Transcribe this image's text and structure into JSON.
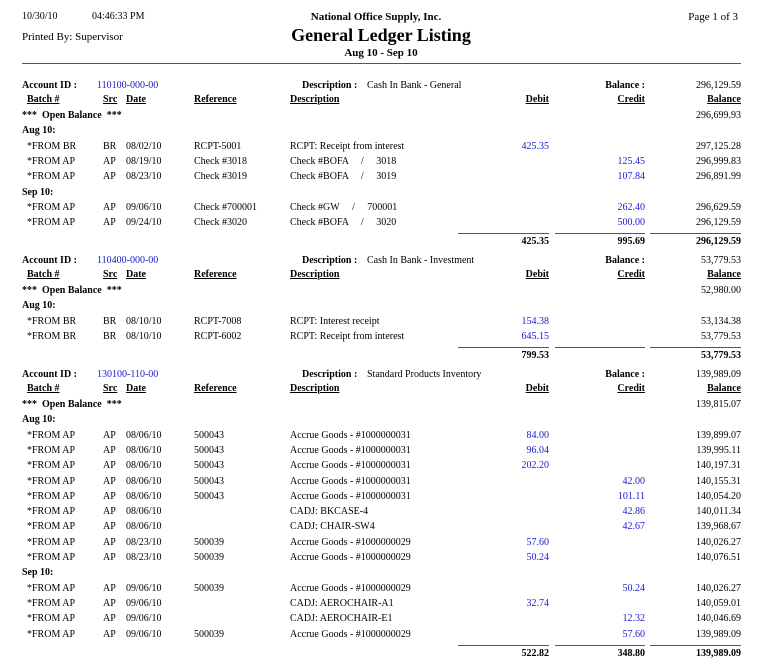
{
  "header": {
    "date": "10/30/10",
    "time": "04:46:33 PM",
    "company": "National Office Supply, Inc.",
    "title": "General Ledger Listing",
    "date_range": "Aug 10 - Sep 10",
    "page": "Page 1 of 3",
    "printed_by": "Printed By: Supervisor"
  },
  "labels": {
    "account_id": "Account ID :",
    "description_label": "Description :",
    "balance_label": "Balance :",
    "batch": "Batch #",
    "src": "Src",
    "date": "Date",
    "reference": "Reference",
    "description": "Description",
    "debit": "Debit",
    "credit": "Credit",
    "balance": "Balance",
    "open_balance": "***  Open Balance  ***"
  },
  "accounts": [
    {
      "id": "110100-000-00",
      "description": "Cash In Bank - General",
      "balance": "296,129.59",
      "open_balance": "296,699.93",
      "groups": [
        {
          "label": "Aug 10:",
          "rows": [
            {
              "batch": "*FROM BR",
              "src": "BR",
              "date": "08/02/10",
              "reference": "RCPT-5001",
              "description": "RCPT: Receipt from interest",
              "debit": "425.35",
              "balance": "297,125.28"
            },
            {
              "batch": "*FROM AP",
              "src": "AP",
              "date": "08/19/10",
              "reference": "Check #3018",
              "description": "Check #BOFA     /     3018",
              "credit": "125.45",
              "balance": "296,999.83"
            },
            {
              "batch": "*FROM AP",
              "src": "AP",
              "date": "08/23/10",
              "reference": "Check #3019",
              "description": "Check #BOFA     /     3019",
              "credit": "107.84",
              "balance": "296,891.99"
            }
          ]
        },
        {
          "label": "Sep 10:",
          "rows": [
            {
              "batch": "*FROM AP",
              "src": "AP",
              "date": "09/06/10",
              "reference": "Check #700001",
              "description": "Check #GW     /     700001",
              "credit": "262.40",
              "balance": "296,629.59"
            },
            {
              "batch": "*FROM AP",
              "src": "AP",
              "date": "09/24/10",
              "reference": "Check #3020",
              "description": "Check #BOFA     /     3020",
              "credit": "500.00",
              "balance": "296,129.59"
            }
          ]
        }
      ],
      "totals": {
        "debit": "425.35",
        "credit": "995.69",
        "balance": "296,129.59"
      }
    },
    {
      "id": "110400-000-00",
      "description": "Cash In Bank - Investment",
      "balance": "53,779.53",
      "open_balance": "52,980.00",
      "groups": [
        {
          "label": "Aug 10:",
          "rows": [
            {
              "batch": "*FROM BR",
              "src": "BR",
              "date": "08/10/10",
              "reference": "RCPT-7008",
              "description": "RCPT: Interest receipt",
              "debit": "154.38",
              "balance": "53,134.38"
            },
            {
              "batch": "*FROM BR",
              "src": "BR",
              "date": "08/10/10",
              "reference": "RCPT-6002",
              "description": "RCPT: Receipt from interest",
              "debit": "645.15",
              "balance": "53,779.53"
            }
          ]
        }
      ],
      "totals": {
        "debit": "799.53",
        "balance": "53,779.53"
      }
    },
    {
      "id": "130100-110-00",
      "description": "Standard Products Inventory",
      "balance": "139,989.09",
      "open_balance": "139,815.07",
      "groups": [
        {
          "label": "Aug 10:",
          "rows": [
            {
              "batch": "*FROM AP",
              "src": "AP",
              "date": "08/06/10",
              "reference": "500043",
              "description": "Accrue Goods - #1000000031",
              "debit": "84.00",
              "balance": "139,899.07"
            },
            {
              "batch": "*FROM AP",
              "src": "AP",
              "date": "08/06/10",
              "reference": "500043",
              "description": "Accrue Goods - #1000000031",
              "debit": "96.04",
              "balance": "139,995.11"
            },
            {
              "batch": "*FROM AP",
              "src": "AP",
              "date": "08/06/10",
              "reference": "500043",
              "description": "Accrue Goods - #1000000031",
              "debit": "202.20",
              "balance": "140,197.31"
            },
            {
              "batch": "*FROM AP",
              "src": "AP",
              "date": "08/06/10",
              "reference": "500043",
              "description": "Accrue Goods - #1000000031",
              "credit": "42.00",
              "balance": "140,155.31"
            },
            {
              "batch": "*FROM AP",
              "src": "AP",
              "date": "08/06/10",
              "reference": "500043",
              "description": "Accrue Goods - #1000000031",
              "credit": "101.11",
              "balance": "140,054.20"
            },
            {
              "batch": "*FROM AP",
              "src": "AP",
              "date": "08/06/10",
              "description": "CADJ: BKCASE-4",
              "credit": "42.86",
              "balance": "140,011.34"
            },
            {
              "batch": "*FROM AP",
              "src": "AP",
              "date": "08/06/10",
              "description": "CADJ: CHAIR-SW4",
              "credit": "42.67",
              "balance": "139,968.67"
            },
            {
              "batch": "*FROM AP",
              "src": "AP",
              "date": "08/23/10",
              "reference": "500039",
              "description": "Accrue Goods - #1000000029",
              "debit": "57.60",
              "balance": "140,026.27"
            },
            {
              "batch": "*FROM AP",
              "src": "AP",
              "date": "08/23/10",
              "reference": "500039",
              "description": "Accrue Goods - #1000000029",
              "debit": "50.24",
              "balance": "140,076.51"
            }
          ]
        },
        {
          "label": "Sep 10:",
          "rows": [
            {
              "batch": "*FROM AP",
              "src": "AP",
              "date": "09/06/10",
              "reference": "500039",
              "description": "Accrue Goods - #1000000029",
              "credit": "50.24",
              "balance": "140,026.27"
            },
            {
              "batch": "*FROM AP",
              "src": "AP",
              "date": "09/06/10",
              "description": "CADJ: AEROCHAIR-A1",
              "debit": "32.74",
              "balance": "140,059.01"
            },
            {
              "batch": "*FROM AP",
              "src": "AP",
              "date": "09/06/10",
              "description": "CADJ: AEROCHAIR-E1",
              "credit": "12.32",
              "balance": "140,046.69"
            },
            {
              "batch": "*FROM AP",
              "src": "AP",
              "date": "09/06/10",
              "reference": "500039",
              "description": "Accrue Goods - #1000000029",
              "credit": "57.60",
              "balance": "139,989.09"
            }
          ]
        }
      ],
      "totals": {
        "debit": "522.82",
        "credit": "348.80",
        "balance": "139,989.09"
      }
    }
  ]
}
